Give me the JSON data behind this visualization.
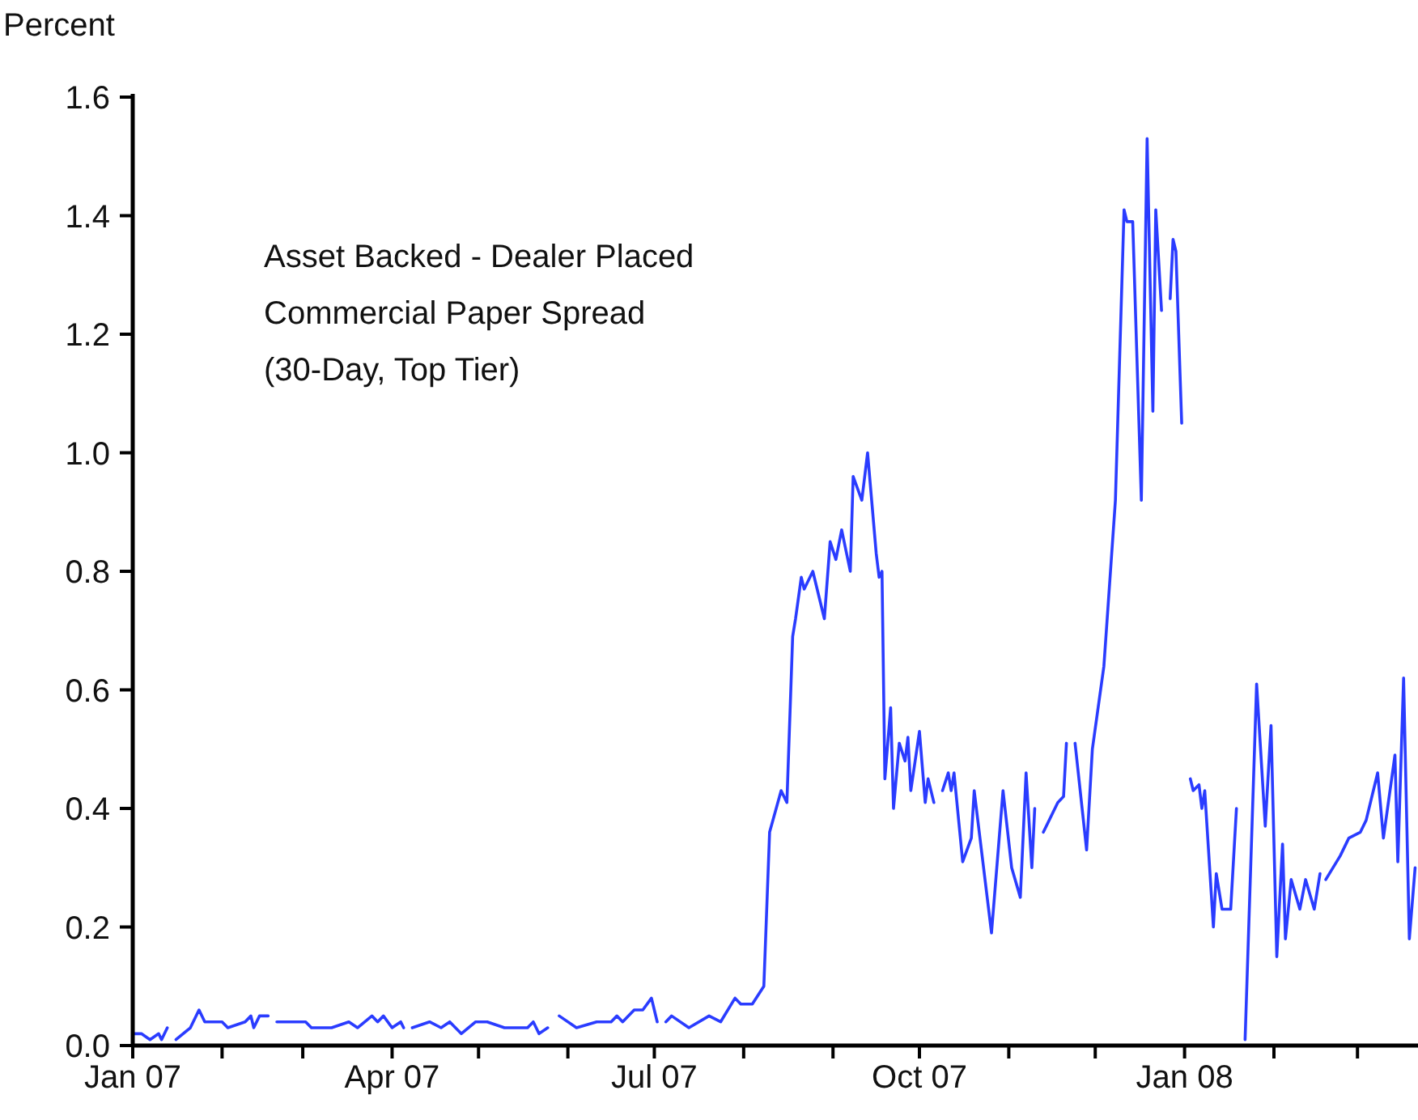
{
  "chart_data": {
    "type": "line",
    "ylabel": "Percent",
    "annotations": [
      "Asset Backed - Dealer Placed",
      "Commercial Paper Spread",
      "(30-Day, Top Tier)"
    ],
    "xlim": [
      "2007-01-01",
      "2008-03-22"
    ],
    "xticks": [
      {
        "value": "2007-01-01",
        "label": "Jan 07"
      },
      {
        "value": "2007-02-01",
        "label": null
      },
      {
        "value": "2007-03-01",
        "label": null
      },
      {
        "value": "2007-04-01",
        "label": "Apr 07"
      },
      {
        "value": "2007-05-01",
        "label": null
      },
      {
        "value": "2007-06-01",
        "label": null
      },
      {
        "value": "2007-07-01",
        "label": "Jul 07"
      },
      {
        "value": "2007-08-01",
        "label": null
      },
      {
        "value": "2007-09-01",
        "label": null
      },
      {
        "value": "2007-10-01",
        "label": "Oct 07"
      },
      {
        "value": "2007-11-01",
        "label": null
      },
      {
        "value": "2007-12-01",
        "label": null
      },
      {
        "value": "2008-01-01",
        "label": "Jan 08"
      },
      {
        "value": "2008-02-01",
        "label": null
      },
      {
        "value": "2008-03-01",
        "label": null
      }
    ],
    "ylim": [
      0,
      1.6
    ],
    "yticks": [
      {
        "value": 0,
        "label": "0.0"
      },
      0.2,
      0.4,
      0.6,
      0.8,
      {
        "value": 1,
        "label": "1.0"
      },
      1.2,
      1.4,
      1.6
    ],
    "marker": "none",
    "line_style": "solid",
    "x": [
      "2007-01-01",
      "2007-01-04",
      "2007-01-07",
      "2007-01-10",
      "2007-01-11",
      "2007-01-13",
      "2007-01-14",
      "2007-01-16",
      "2007-01-21",
      "2007-01-24",
      "2007-01-26",
      "2007-02-01",
      "2007-02-03",
      "2007-02-09",
      "2007-02-11",
      "2007-02-12",
      "2007-02-14",
      "2007-02-17",
      "2007-02-18",
      "2007-02-20",
      "2007-03-02",
      "2007-03-04",
      "2007-03-11",
      "2007-03-17",
      "2007-03-20",
      "2007-03-25",
      "2007-03-27",
      "2007-03-29",
      "2007-04-01",
      "2007-04-04",
      "2007-04-05",
      "2007-04-07",
      "2007-04-08",
      "2007-04-14",
      "2007-04-18",
      "2007-04-21",
      "2007-04-25",
      "2007-04-30",
      "2007-05-04",
      "2007-05-10",
      "2007-05-18",
      "2007-05-20",
      "2007-05-22",
      "2007-05-25",
      "2007-05-26",
      "2007-05-29",
      "2007-06-04",
      "2007-06-11",
      "2007-06-16",
      "2007-06-18",
      "2007-06-20",
      "2007-06-24",
      "2007-06-27",
      "2007-06-30",
      "2007-07-02",
      "2007-07-03",
      "2007-07-05",
      "2007-07-07",
      "2007-07-13",
      "2007-07-20",
      "2007-07-24",
      "2007-07-29",
      "2007-07-31",
      "2007-08-04",
      "2007-08-08",
      "2007-08-10",
      "2007-08-14",
      "2007-08-16",
      "2007-08-18",
      "2007-08-19",
      "2007-08-21",
      "2007-08-22",
      "2007-08-25",
      "2007-08-29",
      "2007-08-31",
      "2007-09-02",
      "2007-09-04",
      "2007-09-07",
      "2007-09-08",
      "2007-09-11",
      "2007-09-13",
      "2007-09-16",
      "2007-09-17",
      "2007-09-18",
      "2007-09-19",
      "2007-09-21",
      "2007-09-22",
      "2007-09-24",
      "2007-09-26",
      "2007-09-27",
      "2007-09-28",
      "2007-10-01",
      "2007-10-03",
      "2007-10-04",
      "2007-10-06",
      "2007-10-07",
      "2007-10-09",
      "2007-10-11",
      "2007-10-12",
      "2007-10-13",
      "2007-10-16",
      "2007-10-19",
      "2007-10-20",
      "2007-10-22",
      "2007-10-26",
      "2007-10-30",
      "2007-11-02",
      "2007-11-05",
      "2007-11-07",
      "2007-11-09",
      "2007-11-10",
      "2007-11-11",
      "2007-11-13",
      "2007-11-18",
      "2007-11-20",
      "2007-11-21",
      "2007-11-22",
      "2007-11-24",
      "2007-11-28",
      "2007-11-30",
      "2007-12-04",
      "2007-12-08",
      "2007-12-11",
      "2007-12-12",
      "2007-12-14",
      "2007-12-17",
      "2007-12-19",
      "2007-12-21",
      "2007-12-22",
      "2007-12-24",
      "2007-12-25",
      "2007-12-27",
      "2007-12-28",
      "2007-12-29",
      "2007-12-31",
      "2008-01-01",
      "2008-01-03",
      "2008-01-04",
      "2008-01-06",
      "2008-01-07",
      "2008-01-08",
      "2008-01-11",
      "2008-01-12",
      "2008-01-14",
      "2008-01-17",
      "2008-01-19",
      "2008-01-20",
      "2008-01-22",
      "2008-01-26",
      "2008-01-29",
      "2008-01-31",
      "2008-02-02",
      "2008-02-04",
      "2008-02-05",
      "2008-02-07",
      "2008-02-10",
      "2008-02-12",
      "2008-02-15",
      "2008-02-17",
      "2008-02-18",
      "2008-02-19",
      "2008-02-24",
      "2008-02-27",
      "2008-03-02",
      "2008-03-04",
      "2008-03-08",
      "2008-03-10",
      "2008-03-14",
      "2008-03-15",
      "2008-03-17",
      "2008-03-19",
      "2008-03-21"
    ],
    "series": [
      {
        "color": "#2a3cff",
        "values": [
          0.02,
          0.02,
          0.01,
          0.02,
          0.01,
          0.03,
          null,
          0.01,
          0.03,
          0.06,
          0.04,
          0.04,
          0.03,
          0.04,
          0.05,
          0.03,
          0.05,
          0.05,
          null,
          0.04,
          0.04,
          0.03,
          0.03,
          0.04,
          0.03,
          0.05,
          0.04,
          0.05,
          0.03,
          0.04,
          0.03,
          null,
          0.03,
          0.04,
          0.03,
          0.04,
          0.02,
          0.04,
          0.04,
          0.03,
          0.03,
          0.04,
          0.02,
          0.03,
          null,
          0.05,
          0.03,
          0.04,
          0.04,
          0.05,
          0.04,
          0.06,
          0.06,
          0.08,
          0.04,
          null,
          0.04,
          0.05,
          0.03,
          0.05,
          0.04,
          0.08,
          0.07,
          0.07,
          0.1,
          0.36,
          0.43,
          0.41,
          0.69,
          0.72,
          0.79,
          0.77,
          0.8,
          0.72,
          0.85,
          0.82,
          0.87,
          0.8,
          0.96,
          0.92,
          1.0,
          0.83,
          0.79,
          0.8,
          0.45,
          0.57,
          0.4,
          0.51,
          0.48,
          0.52,
          0.43,
          0.53,
          0.41,
          0.45,
          0.41,
          null,
          0.43,
          0.46,
          0.43,
          0.46,
          0.31,
          0.35,
          0.43,
          0.35,
          0.19,
          0.43,
          0.3,
          0.25,
          0.46,
          0.3,
          0.4,
          null,
          0.36,
          0.41,
          0.42,
          0.51,
          null,
          0.51,
          0.33,
          0.5,
          0.64,
          0.92,
          1.41,
          1.39,
          1.39,
          0.92,
          1.53,
          1.07,
          1.41,
          1.24,
          null,
          1.26,
          1.36,
          1.34,
          1.05,
          null,
          0.45,
          0.43,
          0.44,
          0.4,
          0.43,
          0.2,
          0.29,
          0.23,
          0.23,
          0.4,
          null,
          0.01,
          0.61,
          0.37,
          0.54,
          0.15,
          0.34,
          0.18,
          0.28,
          0.23,
          0.28,
          0.23,
          0.29,
          null,
          0.28,
          0.32,
          0.35,
          0.36,
          0.38,
          0.46,
          0.35,
          0.49,
          0.31,
          0.62,
          0.18,
          0.3
        ]
      }
    ]
  }
}
